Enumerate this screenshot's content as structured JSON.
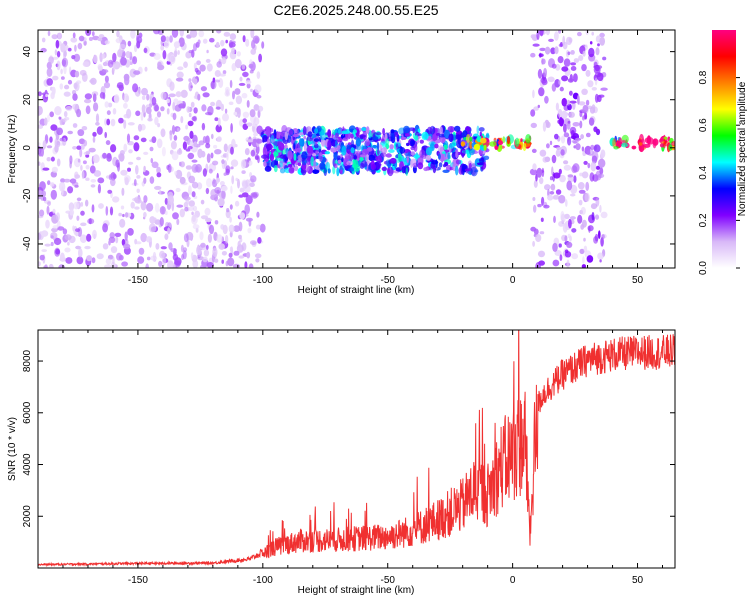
{
  "title": "C2E6.2025.248.00.55.E25",
  "chart_data": [
    {
      "type": "heatmap",
      "name": "spectrogram",
      "xlabel": "Height of straight line (km)",
      "ylabel": "Frequency (Hz)",
      "xlim": [
        -190,
        65
      ],
      "ylim": [
        -50,
        49
      ],
      "xticks": [
        -150,
        -100,
        -50,
        0,
        50
      ],
      "yticks": [
        -40,
        -20,
        0,
        20,
        40
      ],
      "colorbar": {
        "label": "Normalized spectral amplitude",
        "range": [
          0,
          1
        ],
        "ticks": [
          0.0,
          0.2,
          0.4,
          0.6,
          0.8
        ],
        "tick_labels": [
          "0.0",
          "0.2",
          "0.4",
          "0.6",
          "0.8"
        ],
        "colormap": [
          "#ffffff",
          "#d8b8f8",
          "#8000ff",
          "#0000ff",
          "#00ffff",
          "#00ff00",
          "#ffff00",
          "#ff8000",
          "#ff0000",
          "#ff0080"
        ]
      },
      "regions": [
        {
          "desc": "broadband noise",
          "x": [
            -190,
            -100
          ],
          "freq": [
            -50,
            49
          ],
          "amplitude": 0.12
        },
        {
          "desc": "signal band",
          "x": [
            -100,
            -10
          ],
          "freq": [
            -10,
            8
          ],
          "amplitude": 0.3
        },
        {
          "desc": "carrier line",
          "x": [
            -20,
            7
          ],
          "freq": [
            0,
            4
          ],
          "amplitude": 0.75
        },
        {
          "desc": "broadband noise",
          "x": [
            8,
            37
          ],
          "freq": [
            -50,
            49
          ],
          "amplitude": 0.15
        },
        {
          "desc": "carrier line",
          "x": [
            40,
            65
          ],
          "freq": [
            0,
            4
          ],
          "amplitude": 0.85
        }
      ]
    },
    {
      "type": "line",
      "name": "snr",
      "xlabel": "Height of straight line (km)",
      "ylabel": "SNR (10 * v/v)",
      "xlim": [
        -190,
        65
      ],
      "ylim": [
        0,
        9200
      ],
      "xticks": [
        -150,
        -100,
        -50,
        0,
        50
      ],
      "yticks": [
        2000,
        4000,
        6000,
        8000
      ],
      "color": "#f03030",
      "series": [
        {
          "name": "SNR",
          "x": [
            -190,
            -150,
            -120,
            -105,
            -95,
            -85,
            -70,
            -50,
            -40,
            -30,
            -20,
            -15,
            -10,
            -5,
            0,
            5,
            7,
            9,
            12,
            20,
            30,
            40,
            50,
            60,
            65
          ],
          "y": [
            150,
            200,
            220,
            400,
            1000,
            1300,
            1350,
            1500,
            1800,
            2300,
            3000,
            3800,
            3500,
            4800,
            5500,
            6200,
            1500,
            6300,
            7000,
            7800,
            8400,
            8600,
            8700,
            8700,
            8750
          ]
        }
      ]
    }
  ]
}
